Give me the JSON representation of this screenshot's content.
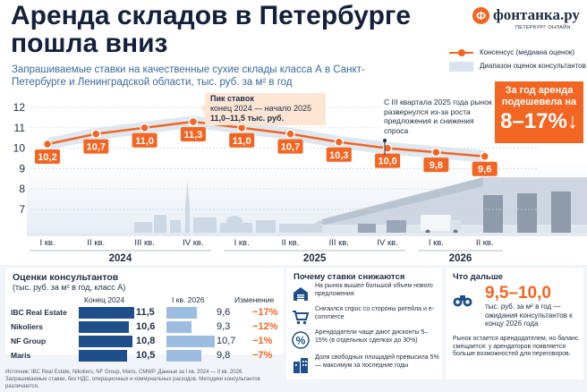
{
  "header": {
    "title": "Аренда складов в Петербурге пошла вниз",
    "subtitle": "Запрашиваемые ставки на качественные сухие склады класса А в Санкт-Петербурге и Ленинградской области, тыс. руб. за м² в год"
  },
  "logo": {
    "mark": "Ф",
    "name": "фонтанка.ру",
    "tagline": "ПЕТЕРБУРГ ОНЛАЙН"
  },
  "legend": {
    "consensus": "Консенсус (медиана оценок)",
    "range": "Диапазон оценок консультантов"
  },
  "colors": {
    "accent": "#f26522",
    "navy": "#1e4f8a",
    "light_blue": "#9dbde0",
    "band": "#d9e3ef",
    "text": "#1f2d44"
  },
  "chart_data": {
    "type": "line",
    "x": [
      "I кв.",
      "II кв.",
      "III кв.",
      "IV кв.",
      "I кв.",
      "II кв.",
      "III кв.",
      "IV кв.",
      "I кв.",
      "II кв."
    ],
    "years": [
      "2024",
      "2025",
      "2026"
    ],
    "series": [
      {
        "name": "Консенсус (медиана оценок)",
        "values": [
          10.2,
          10.7,
          11.0,
          11.3,
          11.0,
          10.7,
          10.3,
          10.0,
          9.8,
          9.6
        ]
      }
    ],
    "value_labels": [
      "10,2",
      "10,7",
      "11,0",
      "11,3",
      "11,0",
      "10,7",
      "10,3",
      "10,0",
      "9,8",
      "9,6"
    ],
    "range_low": [
      9.9,
      10.4,
      10.7,
      11.0,
      10.7,
      10.4,
      10.0,
      9.7,
      9.5,
      9.3
    ],
    "range_high": [
      10.5,
      11.0,
      11.3,
      11.6,
      11.3,
      11.0,
      10.6,
      10.3,
      10.1,
      9.9
    ],
    "yticks": [
      "12",
      "11",
      "10",
      "9",
      "8",
      "7"
    ],
    "ylim": [
      7,
      12
    ],
    "grid": true
  },
  "peak_callout": {
    "title": "Пик ставок",
    "line2": "конец 2024 — начало 2025",
    "line3": "11,0–11,5 тыс. руб."
  },
  "note_q3": "С III квартала 2025 года рынок развернулся из-за роста предложения и снижения спроса",
  "annual_box": {
    "text": "За год аренда подешевела на",
    "value": "8–17%↓"
  },
  "consultants": {
    "title": "Оценки консультантов",
    "subtitle": "(тыс. руб. за м² в год, класс А)",
    "col_2024": "Конец 2024",
    "col_2026": "I кв. 2026",
    "col_change": "Изменение",
    "rows": [
      {
        "name": "IBC Real Estate",
        "v2024": "11,5",
        "v2026": "9,6",
        "change": "−17%",
        "n2024": 11.5,
        "n2026": 9.6
      },
      {
        "name": "Nikoliers",
        "v2024": "10,6",
        "v2026": "9,3",
        "change": "−12%",
        "n2024": 10.6,
        "n2026": 9.3
      },
      {
        "name": "NF Group",
        "v2024": "10,8",
        "v2026": "10,7",
        "change": "−1%",
        "n2024": 10.8,
        "n2026": 10.7
      },
      {
        "name": "Maris",
        "v2024": "10,5",
        "v2026": "9,8",
        "change": "−7%",
        "n2024": 10.5,
        "n2026": 9.8
      }
    ]
  },
  "source": "Источник: IBC Real Estate, Nikoliers, NF Group, Maris, CMWP. Данные за I кв. 2024 — II кв. 2026. Запрашиваемые ставки, без НДС, операционных и коммунальных расходов. Методики консультантов различаются.",
  "why": {
    "title": "Почему ставки снижаются",
    "reasons": [
      {
        "icon": "warehouse-icon",
        "text": "На рынок вышел большой объем нового предложения"
      },
      {
        "icon": "cart-icon",
        "text": "Снизился спрос со стороны ритейла и e-commerce"
      },
      {
        "icon": "percent-icon",
        "text": "Арендодатели чаще дают дисконты 5–15% (в отдельных сделках до 30%)"
      },
      {
        "icon": "buildings-icon",
        "text": "Доля свободных площадей превысила 5% — максимум за последние годы"
      }
    ]
  },
  "next": {
    "title": "Что дальше",
    "range": "9,5–10,0",
    "range_sub": "тыс. руб. за м² в год — ожидания консультантов к концу 2026 года",
    "paragraph": "Рынок остается арендодателем, но баланс смещается: у арендаторов появляется больше возможностей для переговоров."
  }
}
